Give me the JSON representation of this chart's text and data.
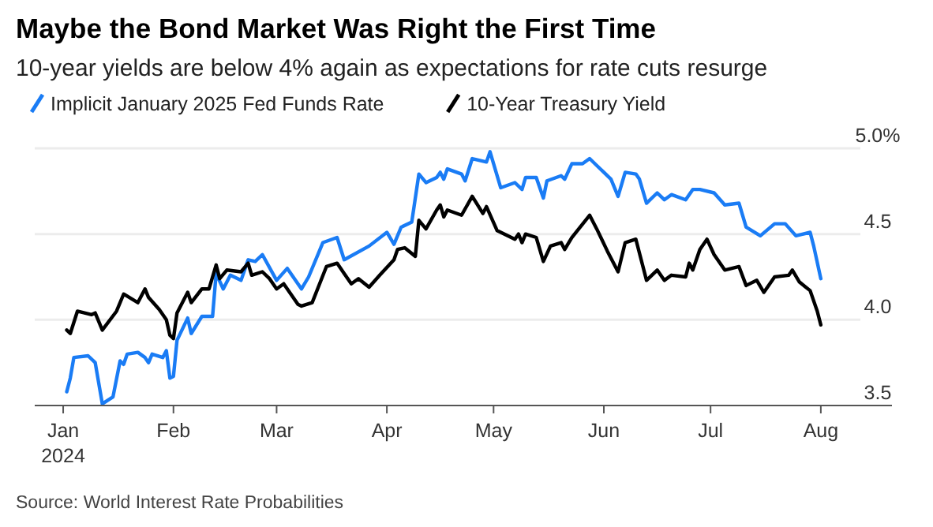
{
  "chart_data": {
    "type": "line",
    "title": "Maybe the Bond Market Was Right the First Time",
    "subtitle": "10-year yields are below 4% again as expectations for rate cuts resurge",
    "xlim": [
      "2023-12-24",
      "2024-08-21"
    ],
    "xticks": [
      {
        "value": "2024-01-01",
        "label": "Jan\n2024"
      },
      {
        "value": "2024-02-01",
        "label": "Feb"
      },
      {
        "value": "2024-03-01",
        "label": "Mar"
      },
      {
        "value": "2024-04-01",
        "label": "Apr"
      },
      {
        "value": "2024-05-01",
        "label": "May"
      },
      {
        "value": "2024-06-01",
        "label": "Jun"
      },
      {
        "value": "2024-07-01",
        "label": "Jul"
      },
      {
        "value": "2024-08-01",
        "label": "Aug"
      }
    ],
    "ylim": [
      3.5,
      5.0
    ],
    "yticks": [
      {
        "value": 3.5,
        "label": "3.5"
      },
      {
        "value": 4.0,
        "label": "4.0"
      },
      {
        "value": 4.5,
        "label": "4.5"
      },
      {
        "value": 5.0,
        "label": "5.0%"
      }
    ],
    "grid": "y",
    "legend": "top",
    "line_style": "solid",
    "annotations": [
      "Source: World Interest Rate Probabilities"
    ],
    "series": [
      {
        "name": "Implicit January 2025 Fed Funds Rate",
        "color": "#1a7cf5",
        "x": [
          "2024-01-02",
          "2024-01-03",
          "2024-01-04",
          "2024-01-08",
          "2024-01-10",
          "2024-01-12",
          "2024-01-15",
          "2024-01-17",
          "2024-01-18",
          "2024-01-19",
          "2024-01-22",
          "2024-01-24",
          "2024-01-25",
          "2024-01-26",
          "2024-01-29",
          "2024-01-30",
          "2024-01-31",
          "2024-02-01",
          "2024-02-02",
          "2024-02-05",
          "2024-02-06",
          "2024-02-09",
          "2024-02-12",
          "2024-02-13",
          "2024-02-15",
          "2024-02-17",
          "2024-02-20",
          "2024-02-22",
          "2024-02-24",
          "2024-02-26",
          "2024-03-01",
          "2024-03-04",
          "2024-03-08",
          "2024-03-10",
          "2024-03-14",
          "2024-03-18",
          "2024-03-20",
          "2024-03-27",
          "2024-04-01",
          "2024-04-03",
          "2024-04-05",
          "2024-04-08",
          "2024-04-10",
          "2024-04-12",
          "2024-04-15",
          "2024-04-16",
          "2024-04-17",
          "2024-04-18",
          "2024-04-22",
          "2024-04-23",
          "2024-04-25",
          "2024-04-29",
          "2024-04-30",
          "2024-05-03",
          "2024-05-07",
          "2024-05-09",
          "2024-05-10",
          "2024-05-13",
          "2024-05-15",
          "2024-05-16",
          "2024-05-20",
          "2024-05-21",
          "2024-05-23",
          "2024-05-26",
          "2024-05-28",
          "2024-06-01",
          "2024-06-03",
          "2024-06-05",
          "2024-06-07",
          "2024-06-10",
          "2024-06-11",
          "2024-06-13",
          "2024-06-16",
          "2024-06-18",
          "2024-06-20",
          "2024-06-24",
          "2024-06-26",
          "2024-06-28",
          "2024-07-02",
          "2024-07-05",
          "2024-07-09",
          "2024-07-11",
          "2024-07-15",
          "2024-07-19",
          "2024-07-22",
          "2024-07-25",
          "2024-07-29",
          "2024-07-30",
          "2024-08-01"
        ],
        "values": [
          3.58,
          3.66,
          3.78,
          3.79,
          3.75,
          3.51,
          3.55,
          3.76,
          3.74,
          3.8,
          3.81,
          3.78,
          3.75,
          3.8,
          3.78,
          3.82,
          3.66,
          3.67,
          3.88,
          4.01,
          3.92,
          4.02,
          4.02,
          4.27,
          4.18,
          4.26,
          4.23,
          4.35,
          4.34,
          4.38,
          4.23,
          4.3,
          4.18,
          4.25,
          4.45,
          4.48,
          4.35,
          4.43,
          4.51,
          4.44,
          4.54,
          4.57,
          4.85,
          4.8,
          4.83,
          4.86,
          4.82,
          4.88,
          4.85,
          4.81,
          4.94,
          4.92,
          4.98,
          4.77,
          4.8,
          4.76,
          4.83,
          4.83,
          4.71,
          4.81,
          4.84,
          4.82,
          4.91,
          4.91,
          4.94,
          4.86,
          4.82,
          4.72,
          4.86,
          4.85,
          4.82,
          4.68,
          4.74,
          4.7,
          4.73,
          4.7,
          4.76,
          4.76,
          4.74,
          4.67,
          4.68,
          4.54,
          4.49,
          4.56,
          4.56,
          4.49,
          4.51,
          4.43,
          4.24
        ]
      },
      {
        "name": "10-Year Treasury Yield",
        "color": "#000000",
        "x": [
          "2024-01-02",
          "2024-01-03",
          "2024-01-05",
          "2024-01-09",
          "2024-01-10",
          "2024-01-12",
          "2024-01-16",
          "2024-01-18",
          "2024-01-22",
          "2024-01-24",
          "2024-01-25",
          "2024-01-28",
          "2024-01-30",
          "2024-01-31",
          "2024-02-01",
          "2024-02-02",
          "2024-02-05",
          "2024-02-06",
          "2024-02-09",
          "2024-02-11",
          "2024-02-13",
          "2024-02-14",
          "2024-02-16",
          "2024-02-20",
          "2024-02-22",
          "2024-02-23",
          "2024-02-26",
          "2024-02-28",
          "2024-03-01",
          "2024-03-03",
          "2024-03-07",
          "2024-03-08",
          "2024-03-11",
          "2024-03-15",
          "2024-03-18",
          "2024-03-20",
          "2024-03-22",
          "2024-03-24",
          "2024-03-27",
          "2024-03-30",
          "2024-04-03",
          "2024-04-04",
          "2024-04-06",
          "2024-04-09",
          "2024-04-10",
          "2024-04-12",
          "2024-04-15",
          "2024-04-16",
          "2024-04-17",
          "2024-04-18",
          "2024-04-22",
          "2024-04-25",
          "2024-04-28",
          "2024-04-29",
          "2024-05-02",
          "2024-05-07",
          "2024-05-08",
          "2024-05-09",
          "2024-05-10",
          "2024-05-13",
          "2024-05-15",
          "2024-05-17",
          "2024-05-20",
          "2024-05-21",
          "2024-05-23",
          "2024-05-28",
          "2024-05-30",
          "2024-06-02",
          "2024-06-05",
          "2024-06-07",
          "2024-06-10",
          "2024-06-13",
          "2024-06-16",
          "2024-06-18",
          "2024-06-20",
          "2024-06-24",
          "2024-06-25",
          "2024-06-26",
          "2024-06-28",
          "2024-06-30",
          "2024-07-02",
          "2024-07-05",
          "2024-07-09",
          "2024-07-11",
          "2024-07-14",
          "2024-07-16",
          "2024-07-19",
          "2024-07-23",
          "2024-07-24",
          "2024-07-26",
          "2024-07-29",
          "2024-07-31",
          "2024-08-01"
        ],
        "values": [
          3.94,
          3.92,
          4.05,
          4.03,
          4.04,
          3.94,
          4.05,
          4.15,
          4.1,
          4.18,
          4.13,
          4.06,
          4.0,
          3.91,
          3.89,
          4.04,
          4.16,
          4.1,
          4.18,
          4.18,
          4.32,
          4.24,
          4.29,
          4.28,
          4.33,
          4.26,
          4.28,
          4.24,
          4.18,
          4.21,
          4.09,
          4.08,
          4.1,
          4.31,
          4.33,
          4.27,
          4.21,
          4.24,
          4.19,
          4.26,
          4.35,
          4.41,
          4.42,
          4.37,
          4.58,
          4.53,
          4.64,
          4.67,
          4.6,
          4.64,
          4.61,
          4.72,
          4.62,
          4.66,
          4.52,
          4.47,
          4.5,
          4.45,
          4.5,
          4.48,
          4.34,
          4.43,
          4.45,
          4.41,
          4.48,
          4.61,
          4.53,
          4.4,
          4.28,
          4.45,
          4.47,
          4.23,
          4.29,
          4.23,
          4.26,
          4.25,
          4.33,
          4.29,
          4.41,
          4.47,
          4.38,
          4.29,
          4.31,
          4.2,
          4.23,
          4.16,
          4.25,
          4.26,
          4.29,
          4.22,
          4.17,
          4.05,
          3.97
        ]
      }
    ]
  }
}
